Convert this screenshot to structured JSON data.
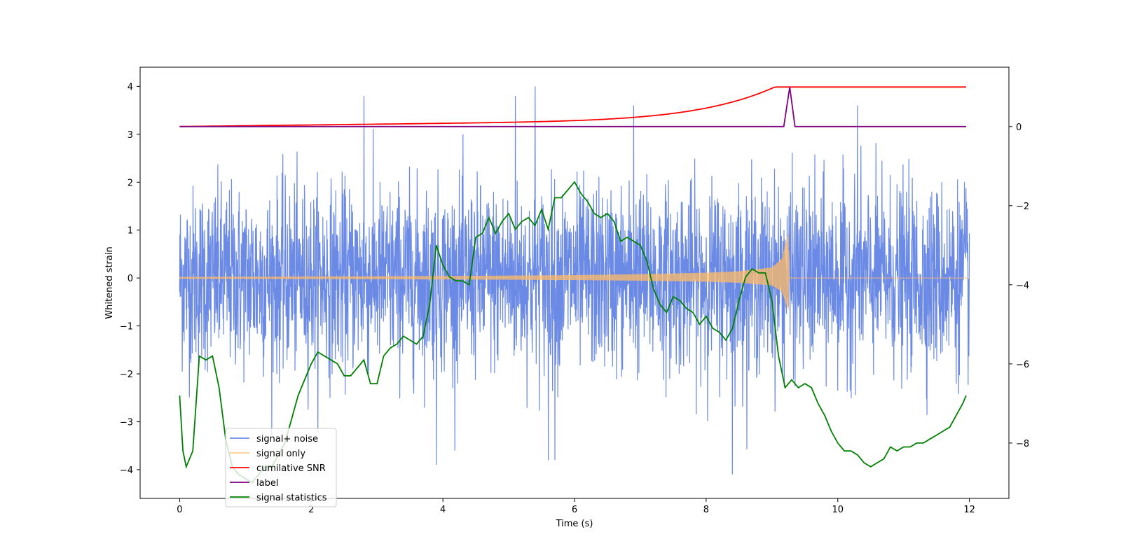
{
  "chart_data": {
    "type": "line",
    "title": "",
    "xlabel": "Time (s)",
    "ylabel": "Whitened strain",
    "y2label": "",
    "xlim": [
      -0.6,
      12.6
    ],
    "ylim": [
      -4.6,
      4.4
    ],
    "y2lim": [
      -9.4,
      1.5
    ],
    "x_ticks": [
      0,
      2,
      4,
      6,
      8,
      10,
      12
    ],
    "y_ticks": [
      -4,
      -3,
      -2,
      -1,
      0,
      1,
      2,
      3,
      4
    ],
    "y2_ticks": [
      -8,
      -6,
      -4,
      -2,
      0
    ],
    "grid": false,
    "legend_position": "lower-left",
    "series": [
      {
        "name": "signal+ noise",
        "axis": "left",
        "color": "#6b8ae6",
        "description_only": false,
        "x_range": [
          0,
          12
        ],
        "noise_sigma": 0.95,
        "notable_spikes": [
          {
            "x": 2.8,
            "y": 3.8
          },
          {
            "x": 5.1,
            "y": 3.8
          },
          {
            "x": 5.4,
            "y": 4.0
          },
          {
            "x": 6.9,
            "y": 3.6
          },
          {
            "x": 10.3,
            "y": 3.6
          },
          {
            "x": 3.9,
            "y": -3.9
          },
          {
            "x": 8.4,
            "y": -4.1
          },
          {
            "x": 5.6,
            "y": -3.8
          },
          {
            "x": 5.7,
            "y": -3.8
          }
        ]
      },
      {
        "name": "signal only",
        "axis": "left",
        "color": "#ffbb66",
        "x": [
          0,
          2,
          4,
          6,
          7,
          8,
          8.5,
          9,
          9.15,
          9.25,
          9.26,
          12
        ],
        "envelope": [
          0.02,
          0.03,
          0.04,
          0.06,
          0.08,
          0.11,
          0.14,
          0.22,
          0.4,
          0.95,
          0.0,
          0.0
        ]
      },
      {
        "name": "cumilative SNR",
        "axis": "right",
        "color": "#ff0000",
        "x": [
          0,
          1,
          2,
          3,
          4,
          5,
          6,
          7,
          7.5,
          8,
          8.5,
          9,
          9.25,
          9.26,
          11.95
        ],
        "values": [
          0.0,
          0.08,
          0.16,
          0.24,
          0.31,
          0.38,
          0.46,
          0.57,
          0.64,
          0.74,
          0.86,
          1.05,
          1.0,
          1.0,
          1.0
        ]
      },
      {
        "name": "label",
        "axis": "right",
        "color": "#800080",
        "x": [
          0,
          9.18,
          9.27,
          9.35,
          11.95
        ],
        "values": [
          0,
          0,
          1,
          0,
          0
        ]
      },
      {
        "name": "signal statistics",
        "axis": "right",
        "color": "#008000",
        "x": [
          0,
          0.05,
          0.1,
          0.2,
          0.3,
          0.4,
          0.5,
          0.6,
          0.7,
          0.8,
          0.9,
          1.0,
          1.1,
          1.2,
          1.3,
          1.4,
          1.5,
          1.6,
          1.7,
          1.8,
          1.9,
          2.0,
          2.1,
          2.2,
          2.3,
          2.4,
          2.5,
          2.6,
          2.7,
          2.8,
          2.9,
          3.0,
          3.1,
          3.2,
          3.3,
          3.4,
          3.5,
          3.6,
          3.7,
          3.8,
          3.9,
          4.0,
          4.1,
          4.2,
          4.3,
          4.4,
          4.5,
          4.6,
          4.7,
          4.8,
          4.9,
          5.0,
          5.1,
          5.2,
          5.3,
          5.4,
          5.5,
          5.6,
          5.7,
          5.8,
          5.9,
          6.0,
          6.1,
          6.2,
          6.3,
          6.4,
          6.5,
          6.6,
          6.7,
          6.8,
          6.9,
          7.0,
          7.1,
          7.2,
          7.3,
          7.4,
          7.5,
          7.6,
          7.7,
          7.8,
          7.9,
          8.0,
          8.1,
          8.2,
          8.3,
          8.4,
          8.5,
          8.6,
          8.7,
          8.8,
          8.9,
          9.0,
          9.1,
          9.2,
          9.3,
          9.4,
          9.5,
          9.6,
          9.7,
          9.8,
          9.9,
          10.0,
          10.1,
          10.2,
          10.3,
          10.4,
          10.5,
          10.6,
          10.7,
          10.8,
          10.9,
          11.0,
          11.1,
          11.2,
          11.3,
          11.4,
          11.5,
          11.6,
          11.7,
          11.8,
          11.9,
          11.95
        ],
        "values": [
          -6.8,
          -8.2,
          -8.6,
          -8.2,
          -5.8,
          -5.9,
          -5.8,
          -6.6,
          -7.9,
          -8.6,
          -8.8,
          -8.9,
          -9.0,
          -8.8,
          -8.6,
          -8.6,
          -8.3,
          -8.0,
          -7.4,
          -6.8,
          -6.4,
          -6.0,
          -5.7,
          -5.8,
          -5.9,
          -6.0,
          -6.3,
          -6.3,
          -6.1,
          -5.9,
          -6.5,
          -6.5,
          -5.8,
          -5.6,
          -5.5,
          -5.3,
          -5.4,
          -5.5,
          -5.3,
          -4.5,
          -3.0,
          -3.5,
          -3.8,
          -3.9,
          -3.9,
          -4.0,
          -2.8,
          -2.7,
          -2.3,
          -2.7,
          -2.4,
          -2.2,
          -2.6,
          -2.4,
          -2.3,
          -2.5,
          -2.1,
          -2.6,
          -1.8,
          -1.8,
          -1.6,
          -1.4,
          -1.7,
          -1.9,
          -2.2,
          -2.3,
          -2.2,
          -2.4,
          -2.9,
          -2.8,
          -2.9,
          -3.0,
          -3.4,
          -4.1,
          -4.5,
          -4.7,
          -4.3,
          -4.4,
          -4.6,
          -4.7,
          -5.0,
          -4.8,
          -5.1,
          -5.2,
          -5.4,
          -5.1,
          -4.4,
          -3.8,
          -3.6,
          -3.7,
          -3.7,
          -4.4,
          -5.8,
          -6.6,
          -6.4,
          -6.6,
          -6.5,
          -6.6,
          -7.0,
          -7.3,
          -7.7,
          -8.0,
          -8.2,
          -8.2,
          -8.3,
          -8.5,
          -8.6,
          -8.5,
          -8.4,
          -8.1,
          -8.2,
          -8.1,
          -8.1,
          -8.0,
          -8.0,
          -7.9,
          -7.8,
          -7.7,
          -7.6,
          -7.3,
          -7.0,
          -6.8
        ]
      }
    ]
  }
}
